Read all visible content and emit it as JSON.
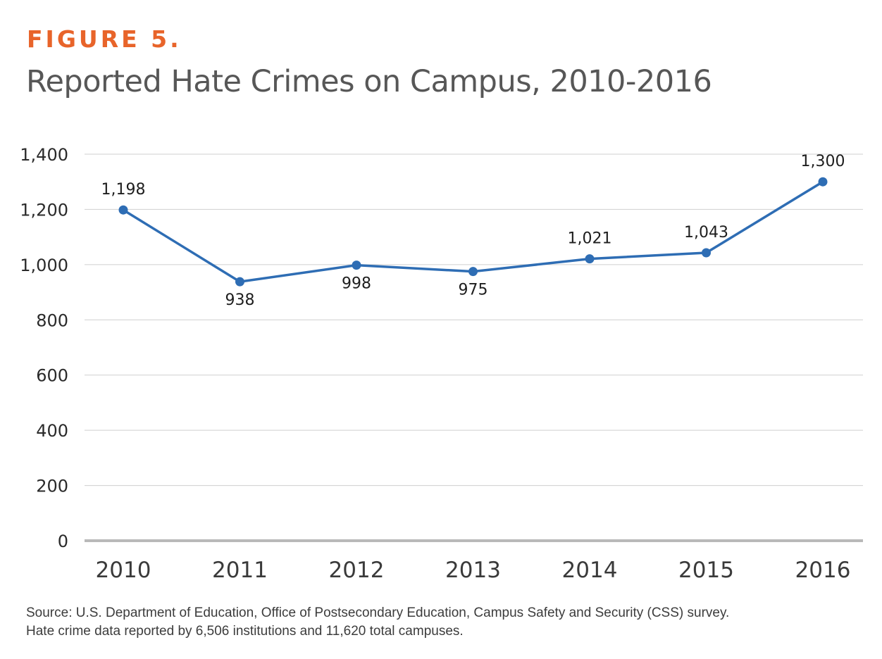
{
  "figure_label": "FIGURE 5.",
  "title": "Reported Hate Crimes on Campus, 2010-2016",
  "source": {
    "line1": "Source: U.S. Department of Education, Office of Postsecondary Education, Campus Safety and Security (CSS) survey.",
    "line2": "Hate crime data reported by 6,506 institutions and 11,620 total campuses."
  },
  "colors": {
    "figure_label": "#e8642a",
    "title": "#575757",
    "series": "#2e6db4",
    "gridline": "#cfcfcf",
    "baseline": "#b9b9b9"
  },
  "chart_data": {
    "type": "line",
    "categories": [
      "2010",
      "2011",
      "2012",
      "2013",
      "2014",
      "2015",
      "2016"
    ],
    "series": [
      {
        "values": [
          1198,
          938,
          998,
          975,
          1021,
          1043,
          1300
        ]
      }
    ],
    "data_labels": [
      "1,198",
      "938",
      "998",
      "975",
      "1,021",
      "1,043",
      "1,300"
    ],
    "data_label_positions": [
      "above",
      "below",
      "below",
      "below",
      "above",
      "above",
      "above"
    ],
    "ylim": [
      0,
      1400
    ],
    "yticks": [
      0,
      200,
      400,
      600,
      800,
      1000,
      1200,
      1400
    ],
    "ytick_labels": [
      "0",
      "200",
      "400",
      "600",
      "800",
      "1,000",
      "1,200",
      "1,400"
    ],
    "grid": "horizontal",
    "xlabel": "",
    "ylabel": "",
    "legend": "none"
  }
}
